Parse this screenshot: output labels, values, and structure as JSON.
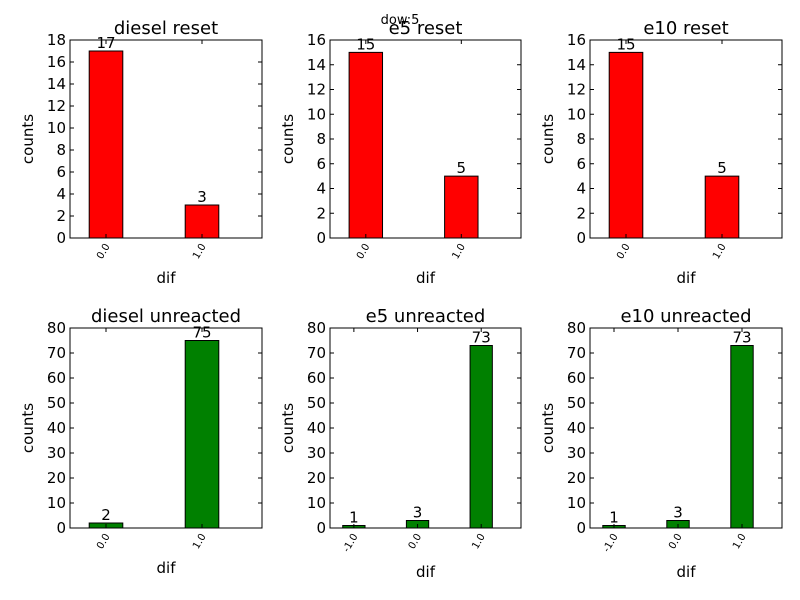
{
  "suptitle": "dow:5",
  "chart_data": [
    {
      "type": "bar",
      "title": "diesel reset",
      "xlabel": "dif",
      "ylabel": "counts",
      "categories": [
        "0.0",
        "1.0"
      ],
      "values": [
        17,
        3
      ],
      "ylim": [
        0,
        18
      ],
      "yticks": [
        0,
        2,
        4,
        6,
        8,
        10,
        12,
        14,
        16,
        18
      ],
      "color": "#ff0000"
    },
    {
      "type": "bar",
      "title": "e5 reset",
      "xlabel": "dif",
      "ylabel": "counts",
      "categories": [
        "0.0",
        "1.0"
      ],
      "values": [
        15,
        5
      ],
      "ylim": [
        0,
        16
      ],
      "yticks": [
        0,
        2,
        4,
        6,
        8,
        10,
        12,
        14,
        16
      ],
      "color": "#ff0000"
    },
    {
      "type": "bar",
      "title": "e10 reset",
      "xlabel": "dif",
      "ylabel": "counts",
      "categories": [
        "0.0",
        "1.0"
      ],
      "values": [
        15,
        5
      ],
      "ylim": [
        0,
        16
      ],
      "yticks": [
        0,
        2,
        4,
        6,
        8,
        10,
        12,
        14,
        16
      ],
      "color": "#ff0000"
    },
    {
      "type": "bar",
      "title": "diesel unreacted",
      "xlabel": "dif",
      "ylabel": "counts",
      "categories": [
        "0.0",
        "1.0"
      ],
      "values": [
        2,
        75
      ],
      "ylim": [
        0,
        80
      ],
      "yticks": [
        0,
        10,
        20,
        30,
        40,
        50,
        60,
        70,
        80
      ],
      "color": "#008000"
    },
    {
      "type": "bar",
      "title": "e5 unreacted",
      "xlabel": "dif",
      "ylabel": "counts",
      "categories": [
        "-1.0",
        "0.0",
        "1.0"
      ],
      "values": [
        1,
        3,
        73
      ],
      "ylim": [
        0,
        80
      ],
      "yticks": [
        0,
        10,
        20,
        30,
        40,
        50,
        60,
        70,
        80
      ],
      "color": "#008000"
    },
    {
      "type": "bar",
      "title": "e10 unreacted",
      "xlabel": "dif",
      "ylabel": "counts",
      "categories": [
        "-1.0",
        "0.0",
        "1.0"
      ],
      "values": [
        1,
        3,
        73
      ],
      "ylim": [
        0,
        80
      ],
      "yticks": [
        0,
        10,
        20,
        30,
        40,
        50,
        60,
        70,
        80
      ],
      "color": "#008000"
    }
  ]
}
